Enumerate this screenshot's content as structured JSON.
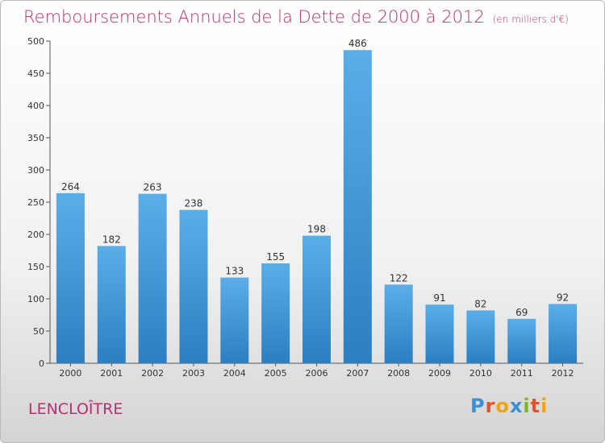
{
  "title": "Remboursements Annuels de la Dette de 2000 à 2012",
  "unit": "(en milliers d'€)",
  "town": "LENCLOÎTRE",
  "logo": {
    "letters": [
      {
        "ch": "P",
        "color": "#3a8fd6"
      },
      {
        "ch": "r",
        "color": "#e8502a"
      },
      {
        "ch": "o",
        "color": "#f2a313"
      },
      {
        "ch": "x",
        "color": "#3a8fd6"
      },
      {
        "ch": "i",
        "color": "#7ab829"
      },
      {
        "ch": "t",
        "color": "#e8502a"
      },
      {
        "ch": "i",
        "color": "#f2a313"
      }
    ]
  },
  "colors": {
    "bar_top": "#5aaee8",
    "bar_bottom": "#2b7fc2",
    "title": "#b5306e"
  },
  "chart_data": {
    "type": "bar",
    "title": "Remboursements Annuels de la Dette de 2000 à 2012",
    "categories": [
      "2000",
      "2001",
      "2002",
      "2003",
      "2004",
      "2005",
      "2006",
      "2007",
      "2008",
      "2009",
      "2010",
      "2011",
      "2012"
    ],
    "values": [
      264,
      182,
      263,
      238,
      133,
      155,
      198,
      486,
      122,
      91,
      82,
      69,
      92
    ],
    "ylim": [
      0,
      500
    ],
    "yticks": [
      0,
      50,
      100,
      150,
      200,
      250,
      300,
      350,
      400,
      450,
      500
    ],
    "grid": false,
    "data_labels": true
  }
}
